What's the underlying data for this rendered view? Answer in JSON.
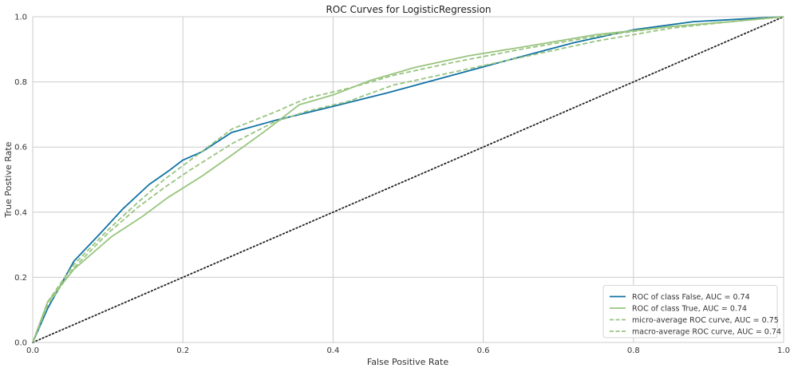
{
  "chart_data": {
    "type": "line",
    "title": "ROC Curves for LogisticRegression",
    "xlabel": "False Positive Rate",
    "ylabel": "True Postive Rate",
    "xlim": [
      0,
      1
    ],
    "ylim": [
      0,
      1
    ],
    "xticks": [
      "0.0",
      "0.2",
      "0.4",
      "0.6",
      "0.8",
      "1.0"
    ],
    "yticks": [
      "0.0",
      "0.2",
      "0.4",
      "0.6",
      "0.8",
      "1.0"
    ],
    "grid": true,
    "legend_position": "bottom-right",
    "series": [
      {
        "name": "ROC of class False, AUC = 0.74",
        "color": "#0f72a3",
        "dash": "solid",
        "x": [
          0,
          0.02,
          0.055,
          0.09,
          0.12,
          0.155,
          0.18,
          0.2,
          0.225,
          0.265,
          0.32,
          0.4,
          0.47,
          0.55,
          0.63,
          0.72,
          0.8,
          0.88,
          1.0
        ],
        "y": [
          0,
          0.105,
          0.25,
          0.335,
          0.41,
          0.485,
          0.525,
          0.56,
          0.585,
          0.645,
          0.68,
          0.725,
          0.765,
          0.815,
          0.865,
          0.92,
          0.96,
          0.985,
          1.0
        ]
      },
      {
        "name": "ROC of class True, AUC = 0.74",
        "color": "#98c47e",
        "dash": "solid",
        "x": [
          0,
          0.02,
          0.055,
          0.105,
          0.145,
          0.18,
          0.225,
          0.265,
          0.31,
          0.355,
          0.4,
          0.45,
          0.51,
          0.58,
          0.66,
          0.75,
          0.85,
          0.93,
          1.0
        ],
        "y": [
          0,
          0.125,
          0.225,
          0.325,
          0.385,
          0.445,
          0.51,
          0.575,
          0.65,
          0.73,
          0.76,
          0.805,
          0.845,
          0.88,
          0.91,
          0.945,
          0.97,
          0.985,
          1.0
        ]
      },
      {
        "name": "micro-average ROC curve, AUC = 0.75",
        "color": "#98c47e",
        "dash": "dashed",
        "x": [
          0,
          0.02,
          0.055,
          0.1,
          0.14,
          0.175,
          0.21,
          0.265,
          0.32,
          0.365,
          0.42,
          0.48,
          0.56,
          0.65,
          0.75,
          0.85,
          0.93,
          1.0
        ],
        "y": [
          0,
          0.125,
          0.24,
          0.345,
          0.43,
          0.5,
          0.56,
          0.655,
          0.705,
          0.75,
          0.78,
          0.82,
          0.86,
          0.9,
          0.94,
          0.97,
          0.985,
          1.0
        ]
      },
      {
        "name": "macro-average ROC curve, AUC = 0.74",
        "color": "#98c47e",
        "dash": "dashed",
        "x": [
          0,
          0.02,
          0.055,
          0.1,
          0.14,
          0.175,
          0.21,
          0.265,
          0.32,
          0.365,
          0.42,
          0.48,
          0.56,
          0.65,
          0.75,
          0.85,
          0.93,
          1.0
        ],
        "y": [
          0,
          0.115,
          0.23,
          0.335,
          0.415,
          0.475,
          0.53,
          0.61,
          0.675,
          0.71,
          0.74,
          0.79,
          0.83,
          0.875,
          0.925,
          0.965,
          0.985,
          1.0
        ]
      }
    ],
    "reference_line": {
      "color": "#222222",
      "dash": "dotted",
      "x": [
        0,
        1
      ],
      "y": [
        0,
        1
      ]
    }
  }
}
